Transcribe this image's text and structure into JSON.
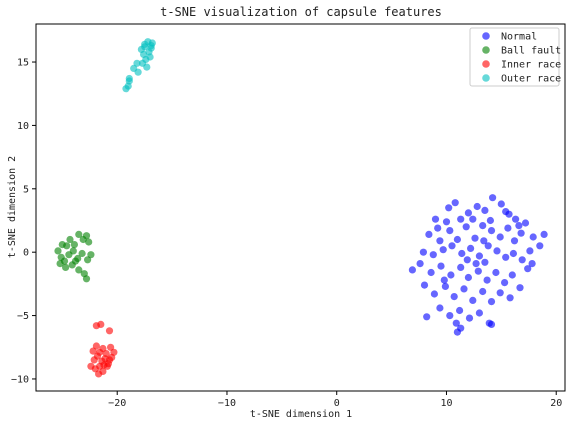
{
  "chart_data": {
    "type": "scatter",
    "title": "t-SNE visualization of capsule features",
    "xlabel": "t-SNE dimension 1",
    "ylabel": "t-SNE dimension 2",
    "xlim": [
      -27.4,
      20.8
    ],
    "ylim": [
      -10.95,
      18.0
    ],
    "xticks": [
      -20,
      -10,
      0,
      10,
      20
    ],
    "yticks": [
      -10,
      -5,
      0,
      5,
      10,
      15
    ],
    "grid": false,
    "legend_position": "top-right",
    "series": [
      {
        "name": "Normal",
        "color": "#0000ff",
        "points": [
          [
            10.2,
            3.5
          ],
          [
            10.8,
            3.9
          ],
          [
            11.3,
            2.6
          ],
          [
            12.0,
            3.1
          ],
          [
            12.8,
            3.6
          ],
          [
            13.5,
            3.3
          ],
          [
            14.2,
            4.3
          ],
          [
            15.0,
            3.8
          ],
          [
            15.7,
            3.0
          ],
          [
            16.3,
            2.6
          ],
          [
            17.2,
            2.3
          ],
          [
            16.8,
            1.5
          ],
          [
            17.9,
            1.2
          ],
          [
            18.5,
            0.5
          ],
          [
            18.9,
            1.4
          ],
          [
            17.6,
            0.1
          ],
          [
            9.0,
            2.6
          ],
          [
            8.4,
            1.4
          ],
          [
            9.4,
            0.9
          ],
          [
            10.3,
            1.7
          ],
          [
            11.0,
            1.0
          ],
          [
            11.8,
            2.0
          ],
          [
            12.6,
            1.1
          ],
          [
            13.3,
            2.1
          ],
          [
            14.1,
            1.7
          ],
          [
            14.9,
            1.2
          ],
          [
            15.6,
            1.9
          ],
          [
            16.2,
            0.9
          ],
          [
            7.9,
            0.0
          ],
          [
            8.8,
            -0.2
          ],
          [
            9.7,
            0.2
          ],
          [
            10.5,
            0.5
          ],
          [
            11.4,
            -0.1
          ],
          [
            12.2,
            0.3
          ],
          [
            13.0,
            -0.3
          ],
          [
            13.8,
            0.5
          ],
          [
            14.6,
            0.1
          ],
          [
            15.4,
            -0.4
          ],
          [
            16.1,
            -0.1
          ],
          [
            16.9,
            -0.6
          ],
          [
            17.8,
            -0.9
          ],
          [
            6.9,
            -1.4
          ],
          [
            7.6,
            -0.9
          ],
          [
            8.6,
            -1.6
          ],
          [
            9.5,
            -1.1
          ],
          [
            10.4,
            -1.8
          ],
          [
            11.3,
            -1.2
          ],
          [
            12.0,
            -2.0
          ],
          [
            12.9,
            -1.5
          ],
          [
            13.7,
            -2.2
          ],
          [
            14.5,
            -1.6
          ],
          [
            15.3,
            -2.4
          ],
          [
            16.0,
            -1.8
          ],
          [
            8.0,
            -2.6
          ],
          [
            8.9,
            -3.3
          ],
          [
            9.9,
            -2.7
          ],
          [
            10.7,
            -3.5
          ],
          [
            11.6,
            -2.9
          ],
          [
            12.4,
            -3.8
          ],
          [
            13.3,
            -3.1
          ],
          [
            14.1,
            -3.9
          ],
          [
            14.9,
            -3.2
          ],
          [
            15.8,
            -3.6
          ],
          [
            16.7,
            -2.8
          ],
          [
            9.4,
            -4.4
          ],
          [
            10.3,
            -5.0
          ],
          [
            11.2,
            -4.6
          ],
          [
            12.1,
            -5.2
          ],
          [
            13.0,
            -4.8
          ],
          [
            13.9,
            -5.6
          ],
          [
            10.9,
            -5.6
          ],
          [
            11.3,
            -6.0
          ],
          [
            11.0,
            -6.3
          ],
          [
            8.2,
            -5.1
          ],
          [
            14.1,
            -5.7
          ],
          [
            12.7,
            -0.9
          ],
          [
            11.9,
            -0.6
          ],
          [
            13.4,
            0.9
          ],
          [
            14.0,
            2.5
          ],
          [
            12.4,
            2.6
          ],
          [
            10.0,
            2.4
          ],
          [
            9.2,
            1.9
          ],
          [
            16.6,
            2.1
          ],
          [
            15.4,
            3.2
          ],
          [
            17.4,
            -1.3
          ],
          [
            9.8,
            -2.2
          ],
          [
            13.5,
            -0.8
          ]
        ]
      },
      {
        "name": "Ball fault",
        "color": "#008000",
        "points": [
          [
            -25.4,
            0.1
          ],
          [
            -25.0,
            0.6
          ],
          [
            -24.6,
            0.5
          ],
          [
            -24.3,
            1.0
          ],
          [
            -23.9,
            0.6
          ],
          [
            -23.5,
            1.4
          ],
          [
            -23.1,
            1.0
          ],
          [
            -22.8,
            1.3
          ],
          [
            -25.1,
            -0.4
          ],
          [
            -24.8,
            -0.7
          ],
          [
            -24.4,
            -0.2
          ],
          [
            -24.0,
            0.1
          ],
          [
            -23.6,
            -0.5
          ],
          [
            -23.2,
            -0.1
          ],
          [
            -22.7,
            -0.6
          ],
          [
            -22.4,
            -0.2
          ],
          [
            -24.7,
            -1.2
          ],
          [
            -24.1,
            -1.0
          ],
          [
            -23.5,
            -1.4
          ],
          [
            -23.0,
            -1.7
          ],
          [
            -22.8,
            -2.1
          ],
          [
            -25.2,
            -0.9
          ],
          [
            -23.8,
            -0.7
          ],
          [
            -22.6,
            0.8
          ]
        ]
      },
      {
        "name": "Inner race",
        "color": "#ff0000",
        "points": [
          [
            -21.9,
            -5.8
          ],
          [
            -21.5,
            -5.7
          ],
          [
            -20.7,
            -6.2
          ],
          [
            -22.2,
            -7.8
          ],
          [
            -21.9,
            -7.4
          ],
          [
            -21.6,
            -7.9
          ],
          [
            -21.3,
            -7.6
          ],
          [
            -21.0,
            -8.0
          ],
          [
            -20.6,
            -7.5
          ],
          [
            -20.3,
            -7.9
          ],
          [
            -22.1,
            -8.5
          ],
          [
            -21.8,
            -8.2
          ],
          [
            -21.4,
            -8.6
          ],
          [
            -21.1,
            -8.4
          ],
          [
            -20.8,
            -8.8
          ],
          [
            -20.5,
            -8.3
          ],
          [
            -22.4,
            -9.0
          ],
          [
            -22.0,
            -9.2
          ],
          [
            -21.6,
            -9.0
          ],
          [
            -21.3,
            -9.4
          ],
          [
            -20.9,
            -9.0
          ],
          [
            -21.7,
            -9.6
          ],
          [
            -21.2,
            -8.9
          ],
          [
            -20.7,
            -8.5
          ]
        ]
      },
      {
        "name": "Outer race",
        "color": "#00bfbf",
        "points": [
          [
            -17.8,
            16.0
          ],
          [
            -17.5,
            16.4
          ],
          [
            -17.2,
            16.6
          ],
          [
            -16.9,
            16.3
          ],
          [
            -17.6,
            15.6
          ],
          [
            -17.1,
            15.8
          ],
          [
            -16.8,
            16.5
          ],
          [
            -17.4,
            15.2
          ],
          [
            -17.0,
            15.4
          ],
          [
            -17.7,
            14.9
          ],
          [
            -17.3,
            14.6
          ],
          [
            -18.2,
            14.9
          ],
          [
            -18.5,
            14.5
          ],
          [
            -18.1,
            14.2
          ],
          [
            -18.9,
            13.5
          ],
          [
            -19.0,
            13.1
          ],
          [
            -19.2,
            12.9
          ],
          [
            -18.9,
            13.7
          ],
          [
            -16.9,
            16.1
          ],
          [
            -17.5,
            16.2
          ]
        ]
      }
    ]
  }
}
